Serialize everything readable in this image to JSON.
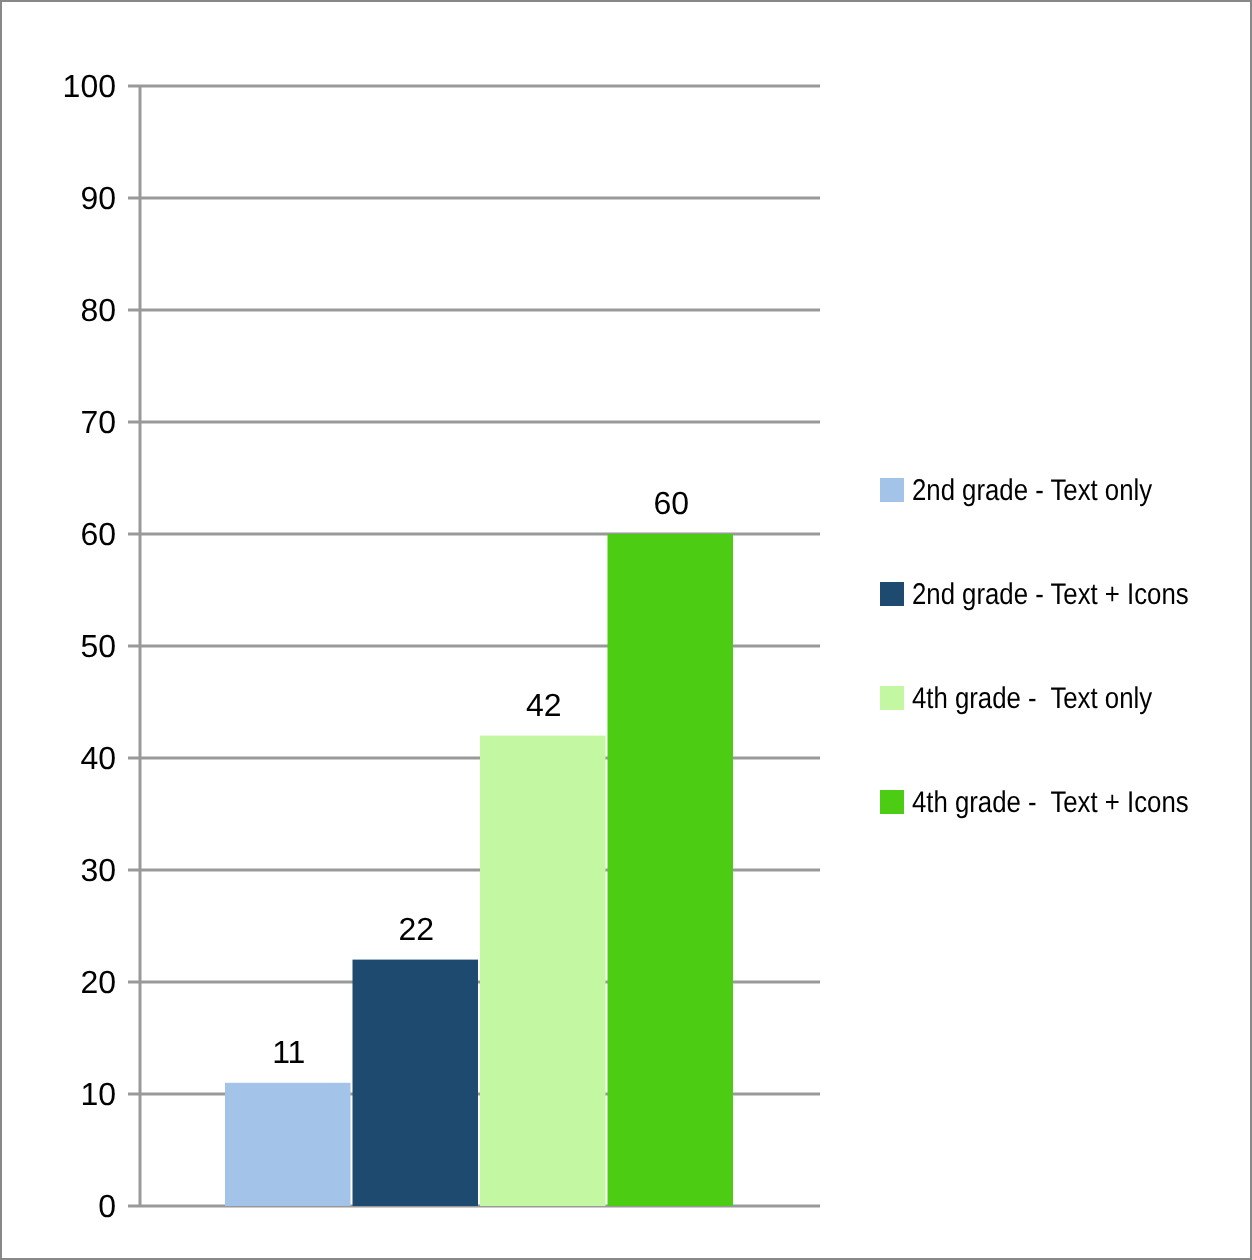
{
  "chart_data": {
    "type": "bar",
    "categories": [
      null
    ],
    "series": [
      {
        "name": "2nd grade - Text only",
        "color": "#a3c3e8",
        "values": [
          11
        ]
      },
      {
        "name": "2nd grade - Text + Icons",
        "color": "#1f4a70",
        "values": [
          22
        ]
      },
      {
        "name": "4th grade -  Text only",
        "color": "#c3f7a2",
        "values": [
          42
        ]
      },
      {
        "name": "4th grade -  Text + Icons",
        "color": "#4ccd14",
        "values": [
          60
        ]
      }
    ],
    "ylim": [
      0,
      100
    ],
    "yticks": [
      0,
      10,
      20,
      30,
      40,
      50,
      60,
      70,
      80,
      90,
      100
    ],
    "grid": "y",
    "legend": "right",
    "data_labels": true
  }
}
